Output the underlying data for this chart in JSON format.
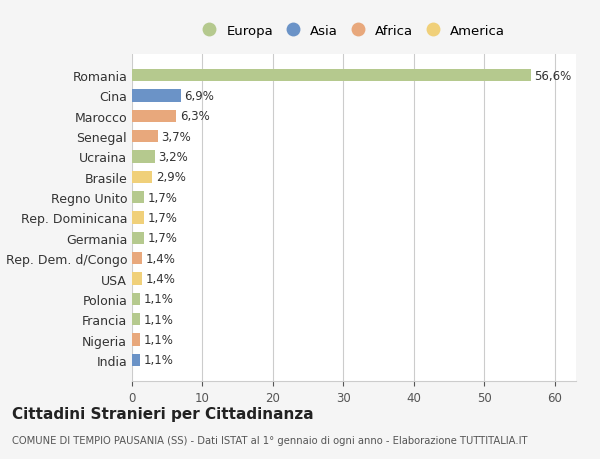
{
  "categories": [
    "Romania",
    "Cina",
    "Marocco",
    "Senegal",
    "Ucraina",
    "Brasile",
    "Regno Unito",
    "Rep. Dominicana",
    "Germania",
    "Rep. Dem. d/Congo",
    "USA",
    "Polonia",
    "Francia",
    "Nigeria",
    "India"
  ],
  "values": [
    56.6,
    6.9,
    6.3,
    3.7,
    3.2,
    2.9,
    1.7,
    1.7,
    1.7,
    1.4,
    1.4,
    1.1,
    1.1,
    1.1,
    1.1
  ],
  "labels": [
    "56,6%",
    "6,9%",
    "6,3%",
    "3,7%",
    "3,2%",
    "2,9%",
    "1,7%",
    "1,7%",
    "1,7%",
    "1,4%",
    "1,4%",
    "1,1%",
    "1,1%",
    "1,1%",
    "1,1%"
  ],
  "continents": [
    "Europa",
    "Asia",
    "Africa",
    "Africa",
    "Europa",
    "America",
    "Europa",
    "America",
    "Europa",
    "Africa",
    "America",
    "Europa",
    "Europa",
    "Africa",
    "Asia"
  ],
  "colors": {
    "Europa": "#b5c98e",
    "Asia": "#6b93c7",
    "Africa": "#e8a87c",
    "America": "#f0d07a"
  },
  "legend_order": [
    "Europa",
    "Asia",
    "Africa",
    "America"
  ],
  "xlim": [
    0,
    63
  ],
  "xticks": [
    0,
    10,
    20,
    30,
    40,
    50,
    60
  ],
  "title": "Cittadini Stranieri per Cittadinanza",
  "subtitle": "COMUNE DI TEMPIO PAUSANIA (SS) - Dati ISTAT al 1° gennaio di ogni anno - Elaborazione TUTTITALIA.IT",
  "background_color": "#f5f5f5",
  "bar_background_color": "#ffffff",
  "grid_color": "#cccccc"
}
